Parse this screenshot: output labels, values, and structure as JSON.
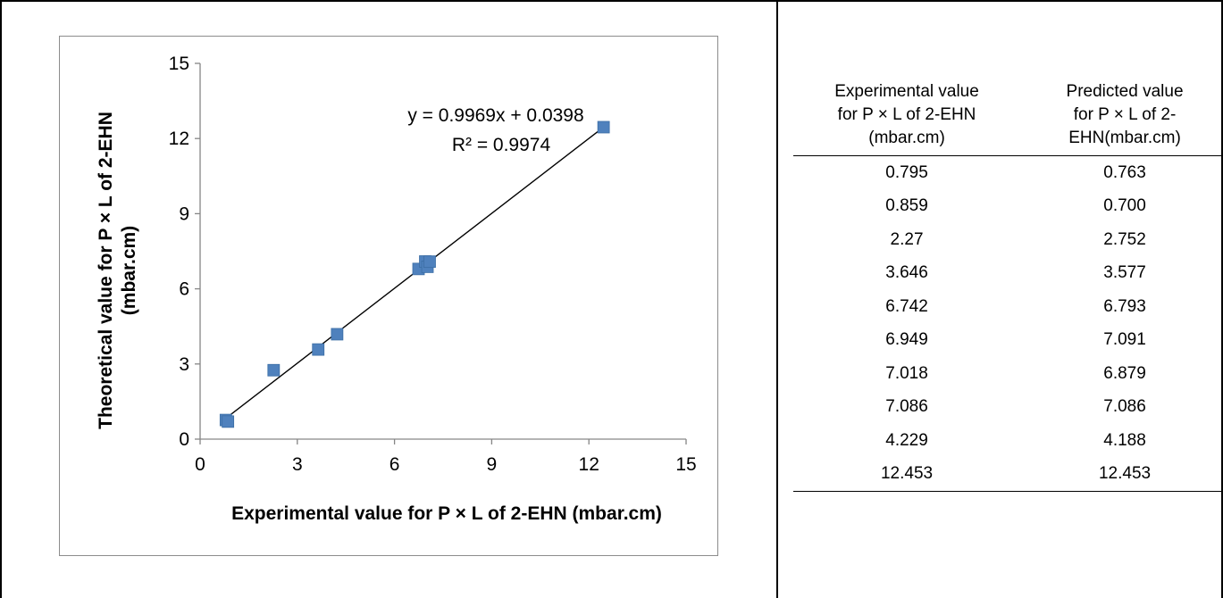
{
  "chart_data": {
    "type": "scatter",
    "title": "",
    "xlabel": "Experimental value for P × L of 2-EHN (mbar.cm)",
    "ylabel_lines": [
      "Theoretical value for P × L of 2-EHN",
      "(mbar.cm)"
    ],
    "xlim": [
      0,
      15
    ],
    "ylim": [
      0,
      15
    ],
    "x_ticks": [
      0,
      3,
      6,
      9,
      12,
      15
    ],
    "y_ticks": [
      0,
      3,
      6,
      9,
      12,
      15
    ],
    "grid": false,
    "marker_color": "#4f81bd",
    "series": [
      {
        "x": [
          0.795,
          0.859,
          2.27,
          3.646,
          6.742,
          6.949,
          7.018,
          7.086,
          4.229,
          12.453
        ],
        "y": [
          0.763,
          0.7,
          2.752,
          3.577,
          6.793,
          7.091,
          6.879,
          7.086,
          4.188,
          12.453
        ]
      }
    ],
    "trendline": {
      "slope": 0.9969,
      "intercept": 0.0398,
      "x_range": [
        0.795,
        12.453
      ]
    },
    "equation_text": "y = 0.9969x + 0.0398",
    "r2_text": "R² = 0.9974"
  },
  "table": {
    "headers": [
      [
        "Experimental value",
        "for P × L of 2-EHN",
        "(mbar.cm)"
      ],
      [
        "Predicted value",
        "for P × L of 2-",
        "EHN(mbar.cm)"
      ]
    ],
    "rows": [
      [
        "0.795",
        "0.763"
      ],
      [
        "0.859",
        "0.700"
      ],
      [
        "2.27",
        "2.752"
      ],
      [
        "3.646",
        "3.577"
      ],
      [
        "6.742",
        "6.793"
      ],
      [
        "6.949",
        "7.091"
      ],
      [
        "7.018",
        "6.879"
      ],
      [
        "7.086",
        "7.086"
      ],
      [
        "4.229",
        "4.188"
      ],
      [
        "12.453",
        "12.453"
      ]
    ]
  }
}
